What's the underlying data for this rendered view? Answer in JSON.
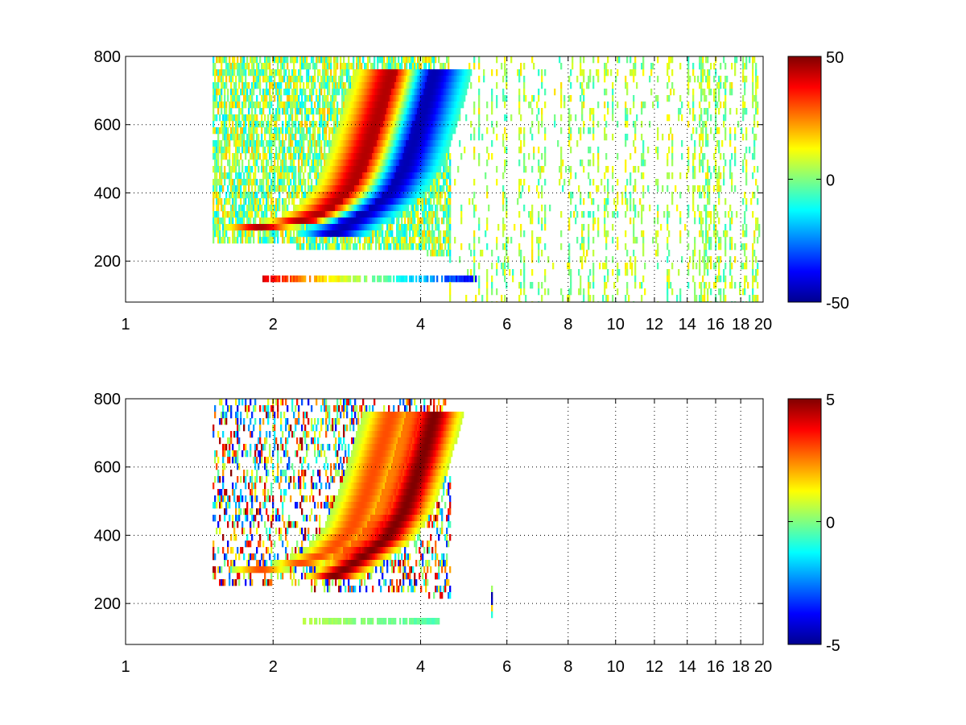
{
  "chart_data": [
    {
      "type": "heatmap",
      "title": "",
      "xlabel": "",
      "ylabel": "",
      "xlim": [
        1,
        20
      ],
      "ylim": [
        80,
        800
      ],
      "x_scale": "log",
      "x_ticks": [
        1,
        2,
        4,
        6,
        8,
        10,
        12,
        14,
        16,
        18,
        20
      ],
      "x_tick_labels": [
        "1",
        "2",
        "4",
        "6",
        "8",
        "10",
        "12",
        "14",
        "16",
        "18",
        "20"
      ],
      "y_ticks": [
        200,
        400,
        600,
        800
      ],
      "y_tick_labels": [
        "200",
        "400",
        "600",
        "800"
      ],
      "grid": true,
      "colormap": "jet",
      "clim": [
        -50,
        50
      ],
      "colorbar_ticks": [
        -50,
        0,
        50
      ],
      "colorbar_tick_labels": [
        "-50",
        "0",
        "50"
      ],
      "features": [
        {
          "description": "positive ridge",
          "points": [
            [
              1.6,
              290
            ],
            [
              2.2,
              310
            ],
            [
              2.6,
              350
            ],
            [
              2.9,
              420
            ],
            [
              3.1,
              520
            ],
            [
              3.3,
              640
            ],
            [
              3.5,
              760
            ]
          ],
          "value": 45
        },
        {
          "description": "negative ridge",
          "points": [
            [
              2.6,
              270
            ],
            [
              3.0,
              330
            ],
            [
              3.4,
              390
            ],
            [
              3.7,
              470
            ],
            [
              3.9,
              560
            ],
            [
              4.1,
              660
            ],
            [
              4.3,
              770
            ]
          ],
          "value": -45
        },
        {
          "description": "horizontal band",
          "y": 150,
          "x_range": [
            1.9,
            5.2
          ],
          "value_range": [
            -40,
            40
          ]
        }
      ]
    },
    {
      "type": "heatmap",
      "title": "",
      "xlabel": "",
      "ylabel": "",
      "xlim": [
        1,
        20
      ],
      "ylim": [
        80,
        800
      ],
      "x_scale": "log",
      "x_ticks": [
        1,
        2,
        4,
        6,
        8,
        10,
        12,
        14,
        16,
        18,
        20
      ],
      "x_tick_labels": [
        "1",
        "2",
        "4",
        "6",
        "8",
        "10",
        "12",
        "14",
        "16",
        "18",
        "20"
      ],
      "y_ticks": [
        200,
        400,
        600,
        800
      ],
      "y_tick_labels": [
        "200",
        "400",
        "600",
        "800"
      ],
      "grid": true,
      "colormap": "jet",
      "clim": [
        -5,
        5
      ],
      "colorbar_ticks": [
        -5,
        0,
        5
      ],
      "colorbar_tick_labels": [
        "-5",
        "0",
        "5"
      ],
      "features": [
        {
          "description": "positive ridge",
          "points": [
            [
              1.6,
              290
            ],
            [
              2.2,
              310
            ],
            [
              2.6,
              350
            ],
            [
              2.9,
              420
            ],
            [
              3.1,
              520
            ],
            [
              3.3,
              640
            ],
            [
              3.5,
              760
            ]
          ],
          "value": 3
        },
        {
          "description": "strong edge",
          "points": [
            [
              2.6,
              270
            ],
            [
              3.0,
              330
            ],
            [
              3.4,
              390
            ],
            [
              3.7,
              470
            ],
            [
              3.9,
              560
            ],
            [
              4.1,
              660
            ],
            [
              4.3,
              770
            ]
          ],
          "value": 5
        },
        {
          "description": "horizontal band",
          "y": 150,
          "x_range": [
            2.3,
            4.4
          ],
          "value_range": [
            -0.5,
            0.5
          ]
        },
        {
          "description": "isolated spike",
          "x": 5.6,
          "y_range": [
            165,
            250
          ],
          "value_range": [
            -5,
            2
          ]
        }
      ]
    }
  ]
}
